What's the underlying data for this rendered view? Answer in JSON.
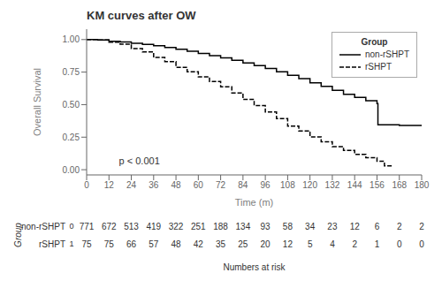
{
  "chart_data": {
    "type": "step",
    "title": "KM curves after OW",
    "x_label": "Time (m)",
    "y_label": "Overall Survival",
    "xlim": [
      0,
      180
    ],
    "ylim": [
      -0.04,
      1.08
    ],
    "xticks": [
      0,
      12,
      24,
      36,
      48,
      60,
      72,
      84,
      96,
      108,
      120,
      132,
      144,
      156,
      168,
      180
    ],
    "yticks": [
      {
        "value": 0,
        "label": "0.00"
      },
      0.25,
      {
        "value": 0.5,
        "label": "0.50"
      },
      0.75,
      {
        "value": 1,
        "label": "1.00"
      }
    ],
    "grid": false,
    "legend": "upper right",
    "legend_title": "Group",
    "series": [
      {
        "name": "non-rSHPT",
        "color": "#000000",
        "line_style": "solid",
        "x": [
          0,
          6,
          12,
          18,
          24,
          30,
          36,
          42,
          48,
          54,
          60,
          66,
          72,
          78,
          84,
          90,
          96,
          102,
          108,
          114,
          120,
          126,
          132,
          138,
          144,
          150,
          156,
          156.5,
          168,
          180
        ],
        "values": [
          1.0,
          0.997,
          0.987,
          0.982,
          0.972,
          0.963,
          0.952,
          0.94,
          0.925,
          0.91,
          0.893,
          0.877,
          0.86,
          0.84,
          0.82,
          0.8,
          0.778,
          0.752,
          0.725,
          0.7,
          0.668,
          0.64,
          0.61,
          0.58,
          0.555,
          0.53,
          0.508,
          0.345,
          0.34,
          0.335
        ]
      },
      {
        "name": "rSHPT",
        "color": "#000000",
        "line_style": "dashed",
        "x": [
          0,
          6,
          12,
          18,
          24,
          30,
          36,
          42,
          48,
          54,
          60,
          66,
          72,
          78,
          84,
          90,
          96,
          102,
          108,
          114,
          120,
          126,
          132,
          138,
          144,
          150,
          156,
          160,
          164
        ],
        "values": [
          1.0,
          0.997,
          0.98,
          0.965,
          0.93,
          0.905,
          0.862,
          0.83,
          0.787,
          0.753,
          0.713,
          0.678,
          0.637,
          0.59,
          0.54,
          0.493,
          0.443,
          0.393,
          0.335,
          0.298,
          0.252,
          0.215,
          0.178,
          0.148,
          0.118,
          0.093,
          0.065,
          0.03,
          0.018
        ]
      }
    ],
    "annotations": [
      {
        "text": "p < 0.001",
        "x": 15,
        "y": 0.07
      }
    ],
    "risk_table": {
      "title": "Numbers at risk",
      "label": "Group",
      "times": [
        0,
        12,
        24,
        36,
        48,
        60,
        72,
        84,
        96,
        108,
        120,
        132,
        144,
        156,
        168,
        180
      ],
      "rows": [
        {
          "name": "non-rSHPT",
          "id": "0",
          "values": [
            771,
            672,
            513,
            419,
            322,
            251,
            188,
            134,
            93,
            58,
            34,
            23,
            12,
            6,
            2,
            2
          ]
        },
        {
          "name": "rSHPT",
          "id": "1",
          "values": [
            75,
            75,
            66,
            57,
            48,
            42,
            35,
            25,
            20,
            12,
            5,
            4,
            2,
            1,
            0,
            0
          ]
        }
      ]
    }
  }
}
